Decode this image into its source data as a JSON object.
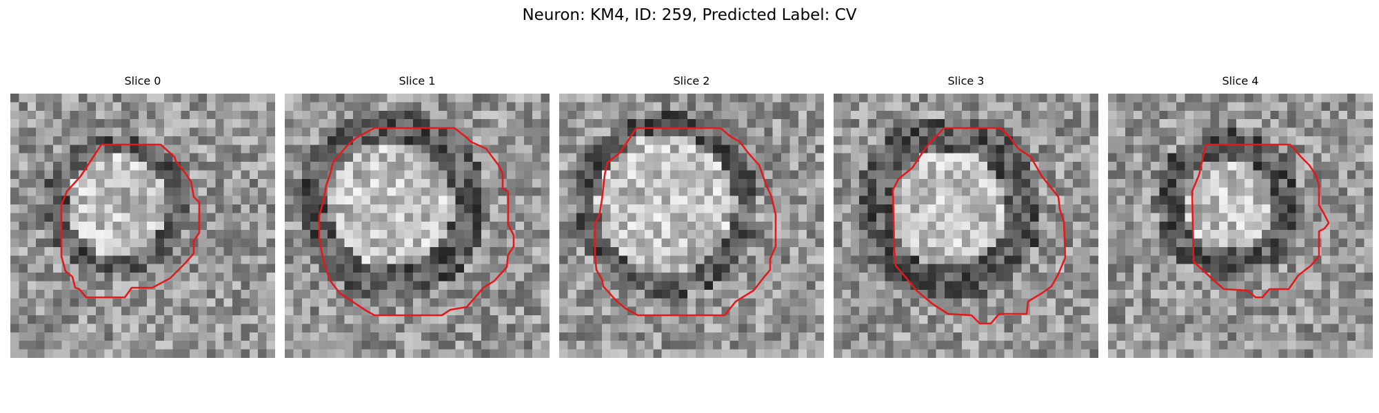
{
  "figure": {
    "title": "Neuron: KM4, ID: 259, Predicted Label: CV"
  },
  "panels": [
    {
      "title": "Slice 0"
    },
    {
      "title": "Slice 1"
    },
    {
      "title": "Slice 2"
    },
    {
      "title": "Slice 3"
    },
    {
      "title": "Slice 4"
    }
  ],
  "style": {
    "outline_color": "#e31a1c",
    "grid_cells": 31
  }
}
